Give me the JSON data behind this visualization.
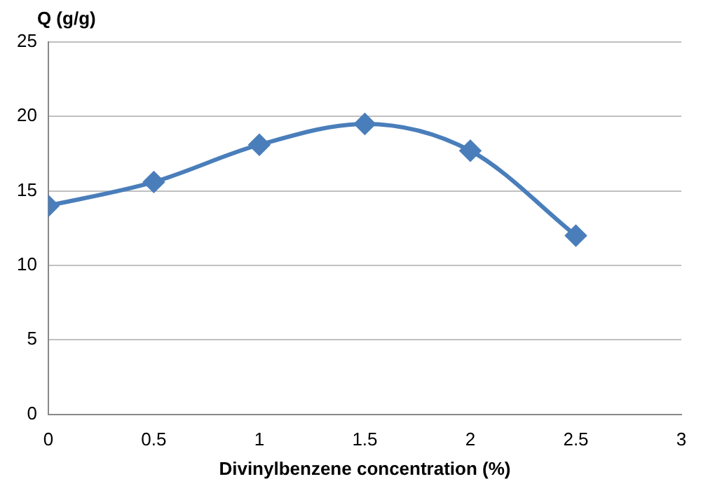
{
  "chart_data": {
    "type": "line",
    "xlabel": "Divinylbenzene concentration (%)",
    "ylabel": "Q (g/g)",
    "x": [
      0,
      0.5,
      1,
      1.5,
      2,
      2.5
    ],
    "series": [
      {
        "color": "#4a7ebb",
        "values": [
          14,
          15.6,
          18.1,
          19.5,
          17.7,
          12
        ]
      }
    ],
    "xlim": [
      0,
      3
    ],
    "xticks": [
      0,
      0.5,
      1,
      1.5,
      2,
      2.5,
      3
    ],
    "ylim": [
      0,
      25
    ],
    "yticks": [
      0,
      5,
      10,
      15,
      20,
      25
    ],
    "grid": "y",
    "legend": false,
    "marker": "diamond",
    "line_style": "solid"
  }
}
